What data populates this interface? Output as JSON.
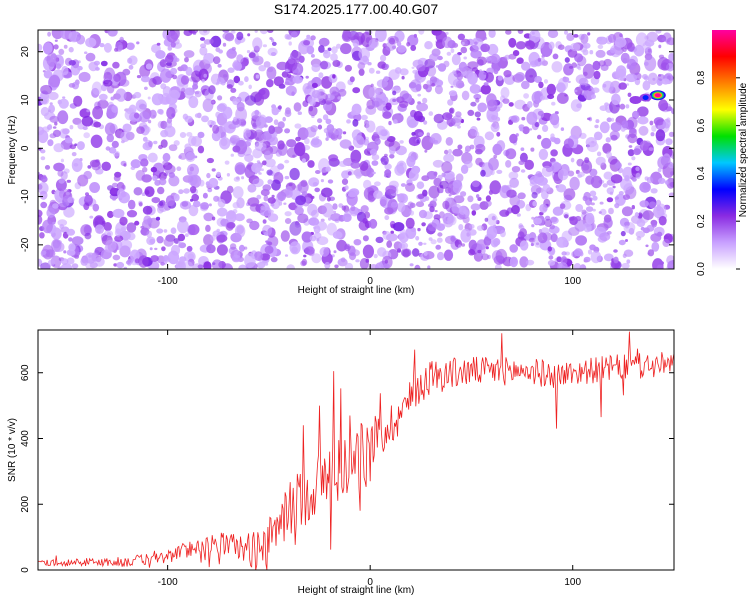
{
  "title": "S174.2025.177.00.40.G07",
  "chart_data": [
    {
      "type": "heatmap",
      "xlabel": "Height of straight line (km)",
      "ylabel": "Frequency (Hz)",
      "xlim": [
        -164,
        150
      ],
      "ylim": [
        -25,
        24.5
      ],
      "xticks": [
        -100,
        0,
        100
      ],
      "yticks": [
        -20,
        -10,
        0,
        10,
        20
      ],
      "colorbar": {
        "label": "Normalized spectral amplitude",
        "range": [
          0,
          1
        ],
        "ticks": [
          "0.0",
          "0.2",
          "0.4",
          "0.6",
          "0.8"
        ],
        "tick_values": [
          0,
          0.2,
          0.4,
          0.6,
          0.8
        ],
        "colors": [
          "#ffffff",
          "#c8a0ff",
          "#8a2be2",
          "#0000ff",
          "#00c8ff",
          "#00e000",
          "#ffff00",
          "#ff8000",
          "#ff0000",
          "#ff00a0"
        ]
      },
      "features": [
        {
          "x": 142,
          "y": 11,
          "amplitude": 1.0
        },
        {
          "x": 136,
          "y": 10.5,
          "amplitude": 0.35
        },
        {
          "x": 131,
          "y": 10,
          "amplitude": 0.2
        }
      ],
      "background_amplitude": [
        0.05,
        0.25
      ]
    },
    {
      "type": "line",
      "xlabel": "Height of straight line (km)",
      "ylabel": "SNR (10 * v/v)",
      "xlim": [
        -164,
        150
      ],
      "ylim": [
        0,
        730
      ],
      "xticks": [
        -100,
        0,
        100
      ],
      "yticks": [
        0,
        200,
        400,
        600
      ],
      "color": "#ee2222",
      "x_step": 0.5,
      "trend": [
        [
          -164,
          22
        ],
        [
          -120,
          25
        ],
        [
          -100,
          40
        ],
        [
          -85,
          75
        ],
        [
          -70,
          80
        ],
        [
          -60,
          60
        ],
        [
          -50,
          85
        ],
        [
          -45,
          140
        ],
        [
          -38,
          200
        ],
        [
          -30,
          240
        ],
        [
          -20,
          290
        ],
        [
          -10,
          330
        ],
        [
          0,
          385
        ],
        [
          10,
          440
        ],
        [
          20,
          520
        ],
        [
          25,
          565
        ],
        [
          30,
          590
        ],
        [
          50,
          605
        ],
        [
          80,
          605
        ],
        [
          90,
          590
        ],
        [
          100,
          600
        ],
        [
          120,
          615
        ],
        [
          150,
          625
        ]
      ],
      "noise_amplitude": [
        [
          -164,
          8
        ],
        [
          -100,
          20
        ],
        [
          -70,
          35
        ],
        [
          -50,
          70
        ],
        [
          -20,
          110
        ],
        [
          0,
          80
        ],
        [
          20,
          60
        ],
        [
          50,
          45
        ],
        [
          100,
          40
        ],
        [
          150,
          40
        ]
      ],
      "spikes": [
        {
          "x": -18,
          "y": 605
        },
        {
          "x": -25,
          "y": 500
        },
        {
          "x": -33,
          "y": 440
        },
        {
          "x": -10,
          "y": 470
        },
        {
          "x": 65,
          "y": 720
        },
        {
          "x": 128,
          "y": 725
        },
        {
          "x": 92,
          "y": 430
        },
        {
          "x": 114,
          "y": 465
        }
      ]
    }
  ]
}
